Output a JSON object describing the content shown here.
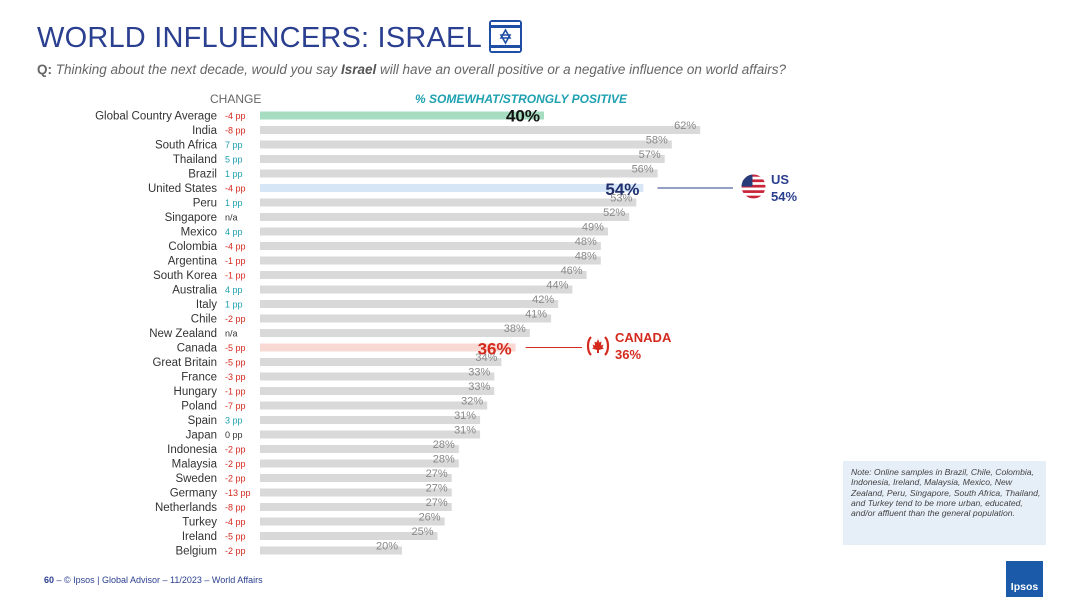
{
  "header": {
    "title": "WORLD INFLUENCERS: ISRAEL",
    "question_prefix": "Q:",
    "question_part1": " Thinking about the next decade, would you say ",
    "question_bold": "Israel",
    "question_part2": " will have an overall positive or a negative influence on world affairs?"
  },
  "column_headers": {
    "change": "CHANGE",
    "positive": "% SOMEWHAT/STRONGLY POSITIVE"
  },
  "colors": {
    "default_bar": "#d9d9d9",
    "global_bar": "#a6dcc0",
    "us_bar": "#d6e6f7",
    "canada_bar": "#f9d9d4",
    "change_positive": "#1fa1b0",
    "change_negative": "#d42a1e",
    "change_neutral": "#333333",
    "title": "#2a3f8f"
  },
  "callouts": {
    "us": {
      "name": "US",
      "value": "54%",
      "icon": "us-flag-icon"
    },
    "canada": {
      "name": "CANADA",
      "value": "36%",
      "icon": "canada-flag-icon"
    }
  },
  "chart_data": {
    "type": "bar",
    "orientation": "horizontal",
    "xlim": [
      0,
      100
    ],
    "series": [
      {
        "name": "% SOMEWHAT/STRONGLY POSITIVE",
        "values": [
          40,
          62,
          58,
          57,
          56,
          54,
          53,
          52,
          49,
          48,
          48,
          46,
          44,
          42,
          41,
          38,
          36,
          34,
          33,
          33,
          32,
          31,
          31,
          28,
          28,
          27,
          27,
          27,
          26,
          25,
          20
        ]
      }
    ],
    "categories": [
      "Global Country Average",
      "India",
      "South Africa",
      "Thailand",
      "Brazil",
      "United States",
      "Peru",
      "Singapore",
      "Mexico",
      "Colombia",
      "Argentina",
      "South Korea",
      "Australia",
      "Italy",
      "Chile",
      "New Zealand",
      "Canada",
      "Great Britain",
      "France",
      "Hungary",
      "Poland",
      "Spain",
      "Japan",
      "Indonesia",
      "Malaysia",
      "Sweden",
      "Germany",
      "Netherlands",
      "Turkey",
      "Ireland",
      "Belgium"
    ],
    "changes": [
      "-4 pp",
      "-8 pp",
      "7 pp",
      "5 pp",
      "1 pp",
      "-4 pp",
      "1 pp",
      "n/a",
      "4 pp",
      "-4 pp",
      "-1 pp",
      "-1 pp",
      "4 pp",
      "1 pp",
      "-2 pp",
      "n/a",
      "-5 pp",
      "-5 pp",
      "-3 pp",
      "-1 pp",
      "-7 pp",
      "3 pp",
      "0 pp",
      "-2 pp",
      "-2 pp",
      "-2 pp",
      "-13 pp",
      "-8 pp",
      "-4 pp",
      "-5 pp",
      "-2 pp"
    ],
    "value_labels": [
      "40%",
      "62%",
      "58%",
      "57%",
      "56%",
      "54%",
      "53%",
      "52%",
      "49%",
      "48%",
      "48%",
      "46%",
      "44%",
      "42%",
      "41%",
      "38%",
      "36%",
      "34%",
      "33%",
      "33%",
      "32%",
      "31%",
      "31%",
      "28%",
      "28%",
      "27%",
      "27%",
      "27%",
      "26%",
      "25%",
      "20%"
    ],
    "highlights": {
      "global": 0,
      "us": 5,
      "canada": 16
    }
  },
  "note": "Note: Online samples in Brazil, Chile, Colombia, Indonesia, Ireland, Malaysia, Mexico, New Zealand, Peru, Singapore, South Africa, Thailand, and Turkey tend to be more urban, educated, and/or affluent than the general population.",
  "footer": {
    "page": "60",
    "text": "–   © Ipsos | Global Advisor – 11/2023 – World Affairs"
  },
  "logo": "Ipsos"
}
